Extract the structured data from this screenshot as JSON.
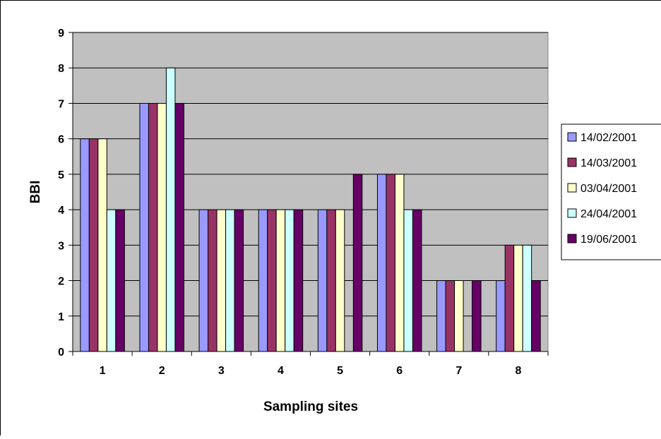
{
  "chart_data": {
    "type": "bar",
    "title": "",
    "xlabel": "Sampling sites",
    "ylabel": "BBI",
    "ylim": [
      0,
      9
    ],
    "yticks": [
      "0",
      "1",
      "2",
      "3",
      "4",
      "5",
      "6",
      "7",
      "8",
      "9"
    ],
    "grid": true,
    "legend_position": "right",
    "categories": [
      "1",
      "2",
      "3",
      "4",
      "5",
      "6",
      "7",
      "8"
    ],
    "series": [
      {
        "name": "14/02/2001",
        "color": "#9999FF",
        "values": [
          6,
          7,
          4,
          4,
          4,
          5,
          2,
          2
        ]
      },
      {
        "name": "14/03/2001",
        "color": "#993366",
        "values": [
          6,
          7,
          4,
          4,
          4,
          5,
          2,
          3
        ]
      },
      {
        "name": "03/04/2001",
        "color": "#FFFFCC",
        "values": [
          6,
          7,
          4,
          4,
          4,
          5,
          2,
          3
        ]
      },
      {
        "name": "24/04/2001",
        "color": "#CCFFFF",
        "values": [
          4,
          8,
          4,
          4,
          0,
          4,
          0,
          3
        ]
      },
      {
        "name": "19/06/2001",
        "color": "#660066",
        "values": [
          4,
          7,
          4,
          4,
          5,
          4,
          2,
          2
        ]
      }
    ],
    "plot_background": "#C0C0C0"
  }
}
